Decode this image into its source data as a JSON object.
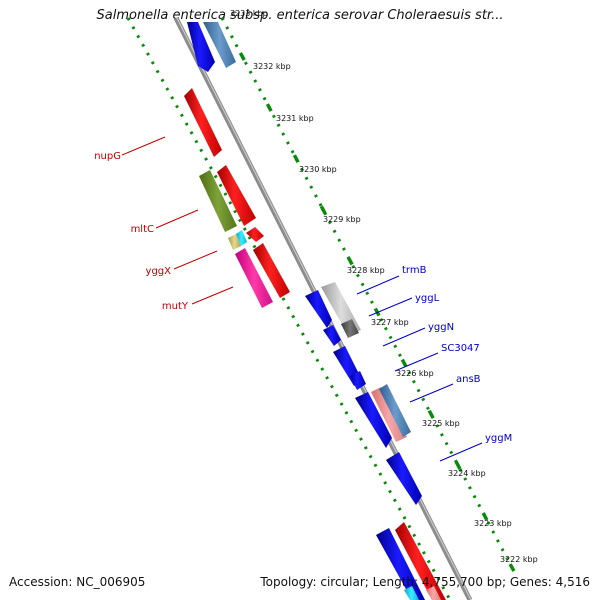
{
  "title": "Salmonella enterica subsp. enterica serovar Choleraesuis str...",
  "footer": {
    "accession": "Accession: NC_006905",
    "topology": "Topology: circular; Length: 4,755,700 bp; Genes: 4,516"
  },
  "kbp_labels": [
    "3233 kbp",
    "3232 kbp",
    "3231 kbp",
    "3230 kbp",
    "3229 kbp",
    "3228 kbp",
    "3227 kbp",
    "3226 kbp",
    "3225 kbp",
    "3224 kbp",
    "3223 kbp",
    "3222 kbp"
  ],
  "genes_left": [
    "nupG",
    "mltC",
    "yggX",
    "mutY"
  ],
  "genes_right": [
    "trmB",
    "yggL",
    "yggN",
    "SC3047",
    "ansB",
    "yggM"
  ],
  "colors": {
    "left_gene_label": "#c00000",
    "right_gene_label": "#0000c0",
    "forward_strand": "#ff0000",
    "reverse_strand": "#0000ff",
    "dotted_track": "#0a8a0a",
    "backbone": "#888888"
  }
}
